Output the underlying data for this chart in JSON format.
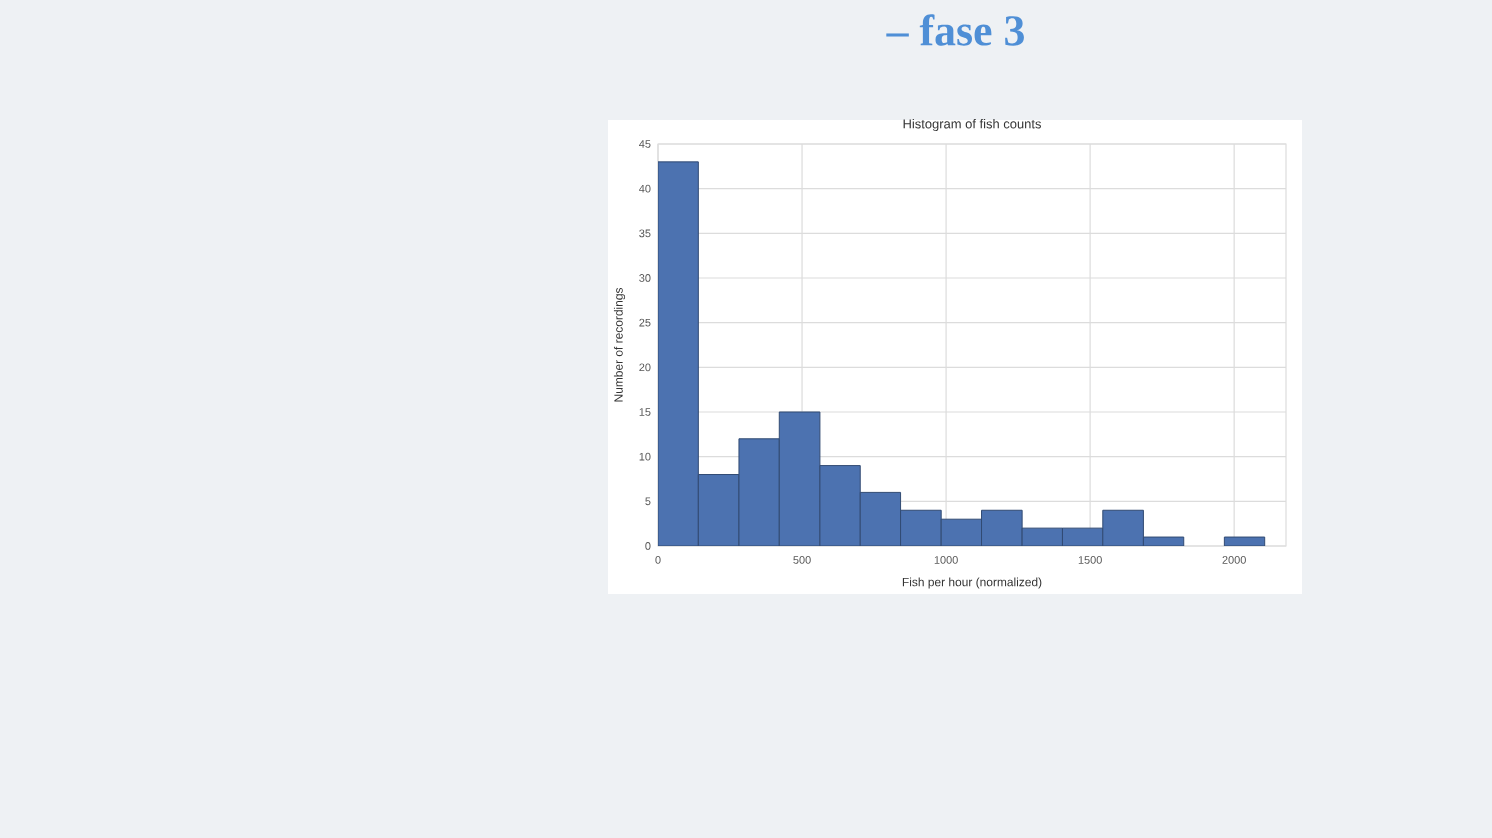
{
  "chart_data": {
    "type": "histogram",
    "title": "Histogram of fish counts",
    "xlabel": "Fish per hour (normalized)",
    "ylabel": "Number of recordings",
    "bins": [
      0,
      140,
      281,
      421,
      562,
      702,
      842,
      983,
      1123,
      1264,
      1404,
      1544,
      1685,
      1825,
      1966,
      2106
    ],
    "values": [
      43,
      8,
      12,
      15,
      9,
      6,
      4,
      3,
      4,
      2,
      2,
      4,
      1,
      0,
      1
    ],
    "color": "#4c72b0",
    "xlim": [
      0,
      2180
    ],
    "ylim": [
      0,
      45
    ],
    "xticks": [
      0,
      500,
      1000,
      1500,
      2000
    ],
    "yticks": [
      0,
      5,
      10,
      15,
      20,
      25,
      30,
      35,
      40,
      45
    ],
    "grid": true,
    "annotations": [
      "– fase 3"
    ]
  }
}
